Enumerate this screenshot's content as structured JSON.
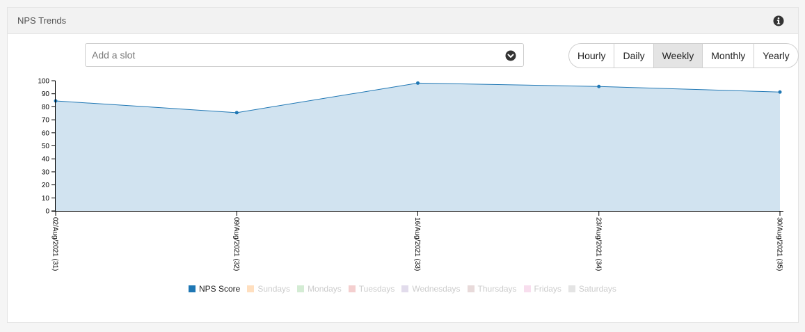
{
  "panel": {
    "title": "NPS Trends"
  },
  "slot_select": {
    "placeholder": "Add a slot"
  },
  "ranges": [
    {
      "label": "Hourly",
      "active": false
    },
    {
      "label": "Daily",
      "active": false
    },
    {
      "label": "Weekly",
      "active": true
    },
    {
      "label": "Monthly",
      "active": false
    },
    {
      "label": "Yearly",
      "active": false
    }
  ],
  "legend": [
    {
      "label": "NPS Score",
      "color": "#1f77b4",
      "enabled": true
    },
    {
      "label": "Sundays",
      "color": "#ffdfbf",
      "enabled": false
    },
    {
      "label": "Mondays",
      "color": "#d4ecd4",
      "enabled": false
    },
    {
      "label": "Tuesdays",
      "color": "#f4cfcf",
      "enabled": false
    },
    {
      "label": "Wednesdays",
      "color": "#e2dcec",
      "enabled": false
    },
    {
      "label": "Thursdays",
      "color": "#e8dada",
      "enabled": false
    },
    {
      "label": "Fridays",
      "color": "#f8deee",
      "enabled": false
    },
    {
      "label": "Saturdays",
      "color": "#e4e4e4",
      "enabled": false
    }
  ],
  "chart_data": {
    "type": "area",
    "categories": [
      "02/Aug/2021 (31)",
      "09/Aug/2021 (32)",
      "16/Aug/2021 (33)",
      "23/Aug/2021 (34)",
      "30/Aug/2021 (35)"
    ],
    "series": [
      {
        "name": "NPS Score",
        "values": [
          84.5,
          75.5,
          98.2,
          95.6,
          91.3
        ]
      }
    ],
    "ylim": [
      0,
      100
    ],
    "yticks": [
      0,
      10,
      20,
      30,
      40,
      50,
      60,
      70,
      80,
      90,
      100
    ],
    "line_color": "#1f77b4",
    "fill_color": "#d1e3f0",
    "grid": false,
    "legend_position": "bottom"
  }
}
